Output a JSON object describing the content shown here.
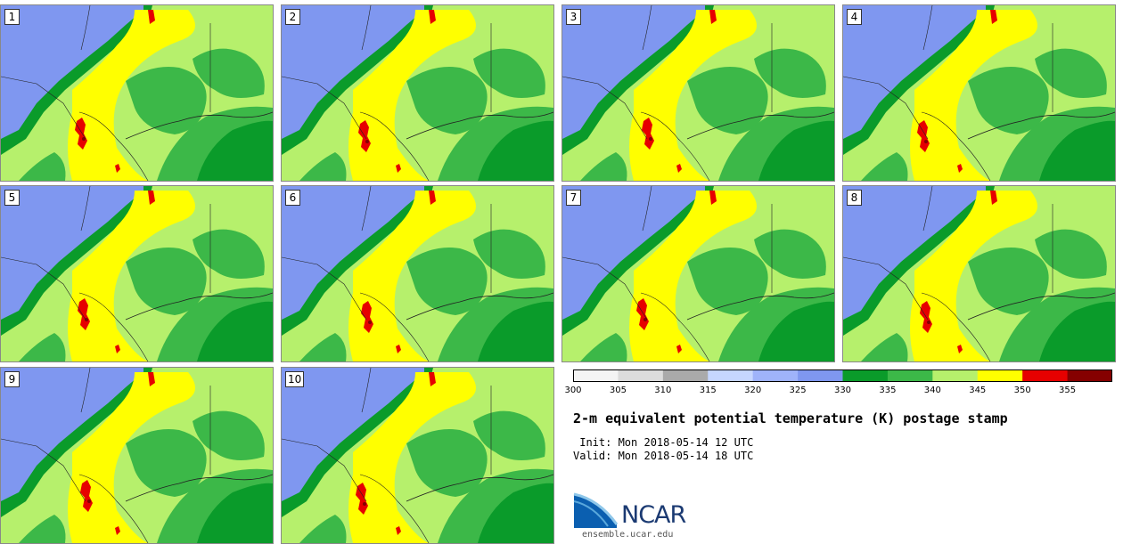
{
  "panels": [
    {
      "label": "1"
    },
    {
      "label": "2"
    },
    {
      "label": "3"
    },
    {
      "label": "4"
    },
    {
      "label": "5"
    },
    {
      "label": "6"
    },
    {
      "label": "7"
    },
    {
      "label": "8"
    },
    {
      "label": "9"
    },
    {
      "label": "10"
    }
  ],
  "colorbar": {
    "ticks": [
      "300",
      "305",
      "310",
      "315",
      "320",
      "325",
      "330",
      "335",
      "340",
      "345",
      "350",
      "355"
    ],
    "colors": [
      "#f4f4f4",
      "#dcdcdc",
      "#aaaaaa",
      "#c6d6ff",
      "#9fb3fa",
      "#7f97f0",
      "#0a9b2a",
      "#3cb848",
      "#b6f06c",
      "#ffff00",
      "#e60000",
      "#850000"
    ]
  },
  "map_colors": {
    "cool": "#7f97f0",
    "dark_green": "#0a9b2a",
    "mid_green": "#3cb848",
    "light_green": "#b6f06c",
    "yellow": "#ffff00",
    "red": "#e60000",
    "dark_red": "#850000"
  },
  "title": "2-m equivalent potential temperature (K) postage stamp",
  "init": " Init: Mon 2018-05-14 12 UTC",
  "valid": "Valid: Mon 2018-05-14 18 UTC",
  "logo": {
    "name": "NCAR",
    "url": "ensemble.ucar.edu"
  }
}
